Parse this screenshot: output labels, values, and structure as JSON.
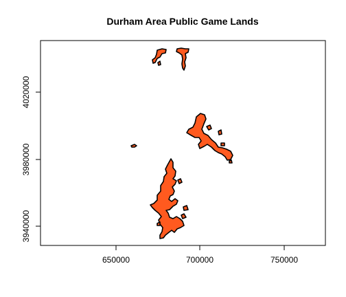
{
  "map": {
    "title": "Durham Area Public Game Lands",
    "fill_color": "#FF5A1F",
    "outline_color": "#000000",
    "x_axis": {
      "ticks": [
        "650000",
        "700000",
        "750000"
      ]
    },
    "y_axis": {
      "ticks": [
        "3940000",
        "3980000",
        "4020000"
      ]
    },
    "features": [
      {
        "name": "northwest-tract",
        "label": ""
      },
      {
        "name": "north-tract",
        "label": ""
      },
      {
        "name": "east-tract",
        "label": ""
      },
      {
        "name": "small-west-tract",
        "label": ""
      },
      {
        "name": "south-tract",
        "label": ""
      }
    ]
  }
}
